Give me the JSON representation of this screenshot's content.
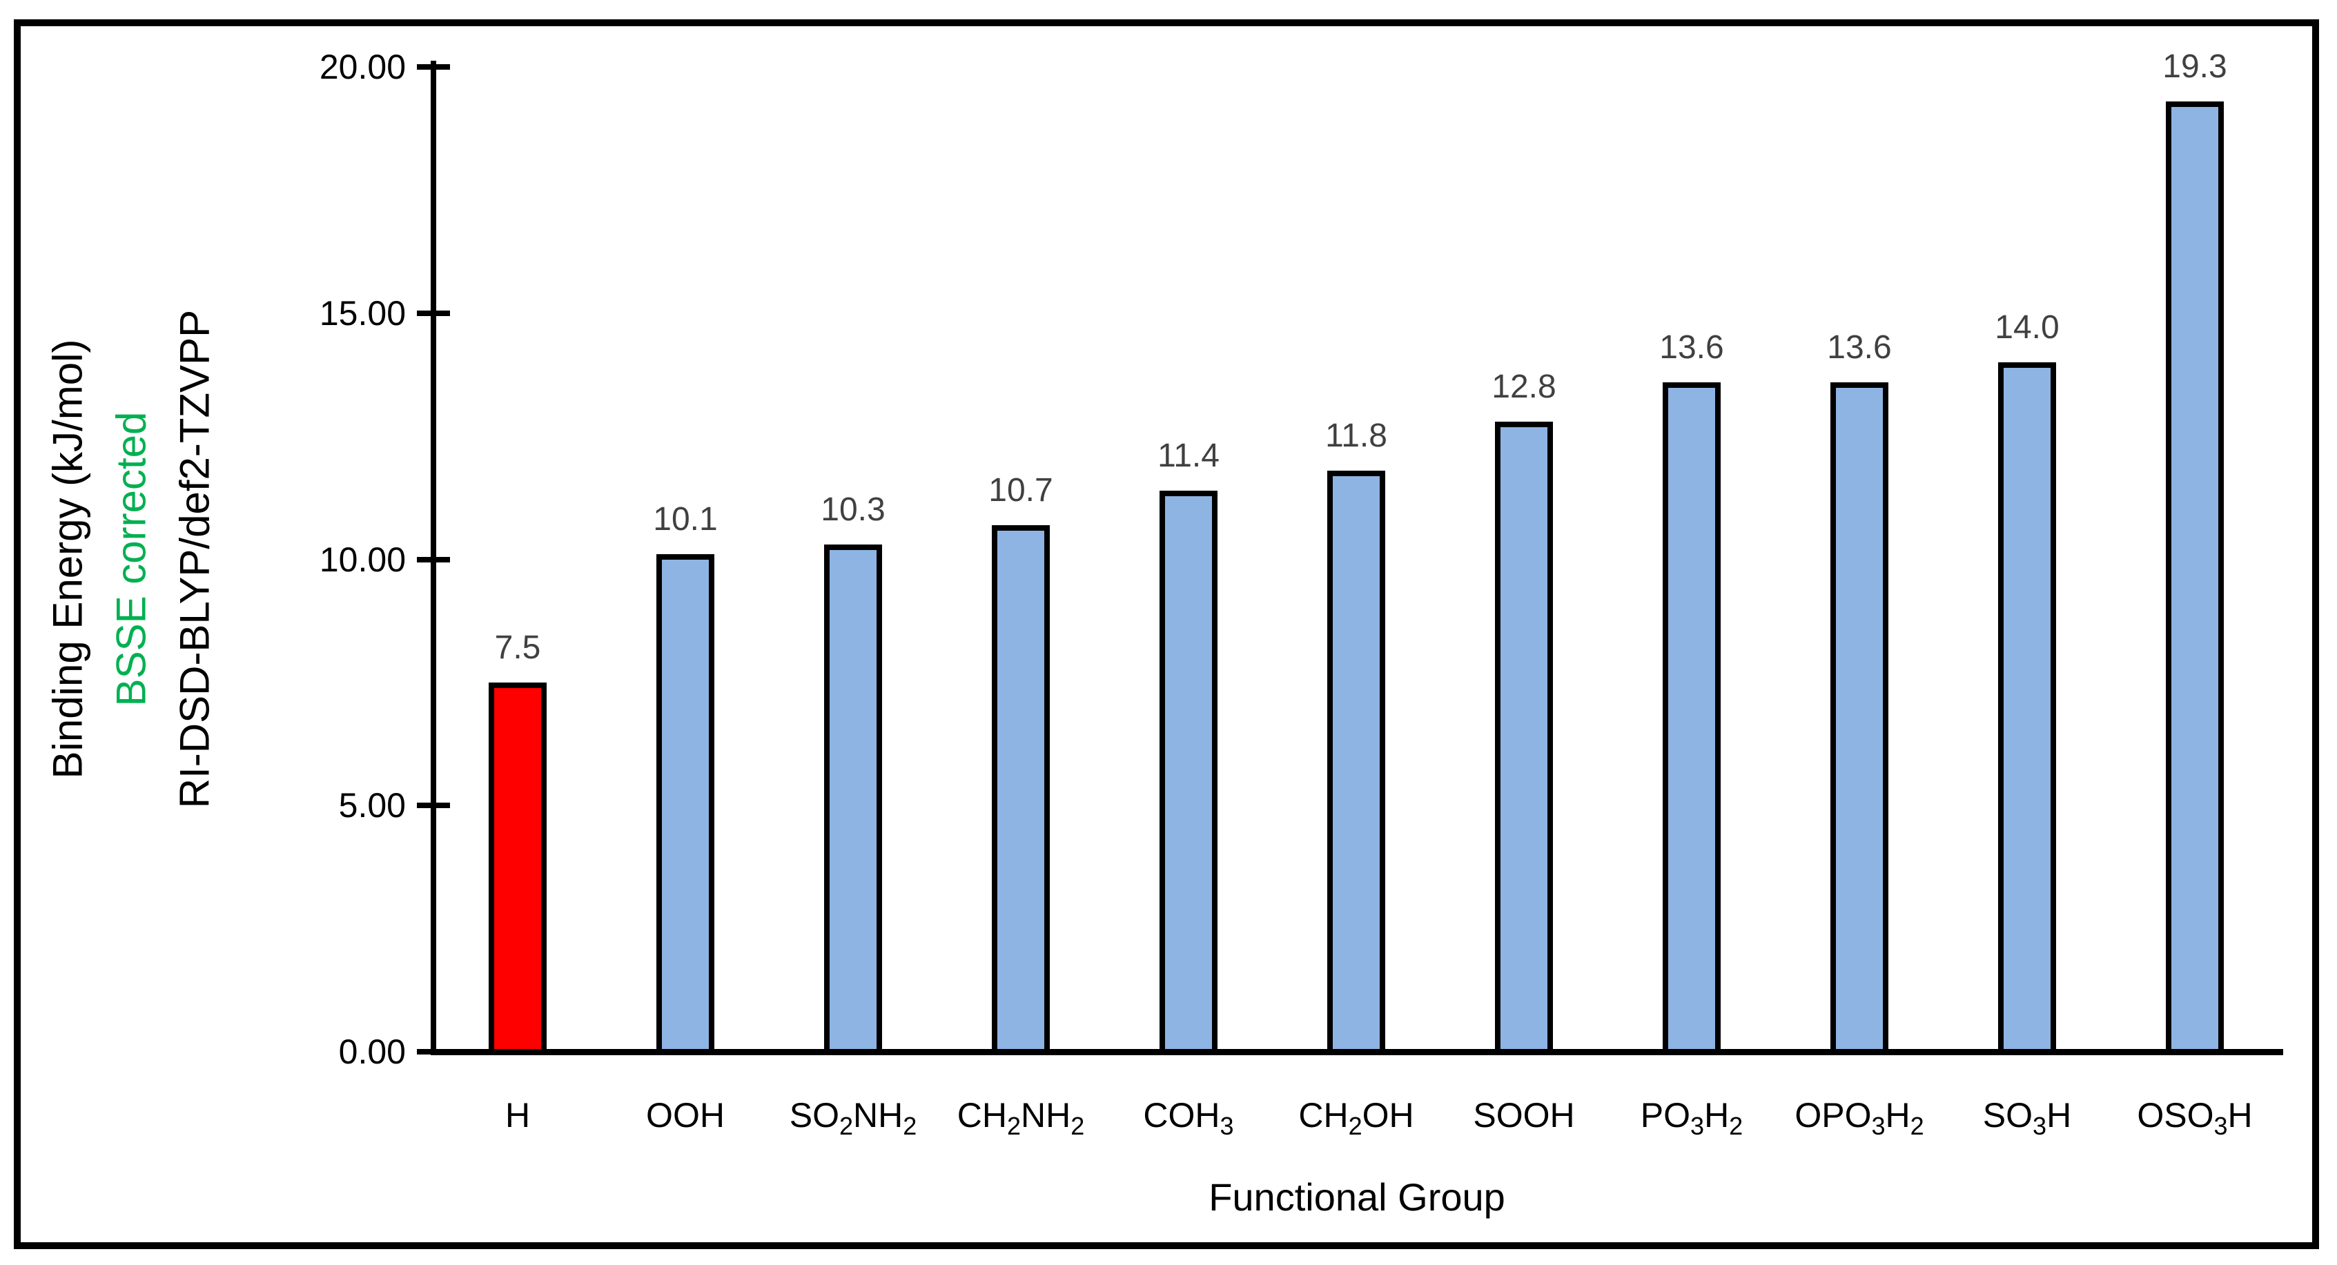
{
  "chart_data": {
    "type": "bar",
    "title": "",
    "categories": [
      "H",
      "OOH",
      "SO_2NH_2",
      "CH_2NH_2",
      "COH_3",
      "CH_2OH",
      "SOOH",
      "PO_3H_2",
      "OPO_3H_2",
      "SO_3H",
      "OSO_3H"
    ],
    "values": [
      7.5,
      10.1,
      10.3,
      10.7,
      11.4,
      11.8,
      12.8,
      13.6,
      13.6,
      14.0,
      19.3
    ],
    "data_labels": [
      "7.5",
      "10.1",
      "10.3",
      "10.7",
      "11.4",
      "11.8",
      "12.8",
      "13.6",
      "13.6",
      "14.0",
      "19.3"
    ],
    "bar_colors": [
      "#FF0000",
      "#8EB4E3",
      "#8EB4E3",
      "#8EB4E3",
      "#8EB4E3",
      "#8EB4E3",
      "#8EB4E3",
      "#8EB4E3",
      "#8EB4E3",
      "#8EB4E3",
      "#8EB4E3"
    ],
    "xlabel": "Functional Group",
    "ylabel_lines": [
      {
        "text": "Binding Energy (kJ/mol)",
        "color": "#000000"
      },
      {
        "text": "BSSE corrected",
        "color": "#00B050"
      },
      {
        "text": "RI-DSD-BLYP/def2-TZVPP",
        "color": "#000000"
      }
    ],
    "yticks": [
      "0.00",
      "5.00",
      "10.00",
      "15.00",
      "20.00"
    ],
    "ylim": [
      0,
      20
    ],
    "ytick_step": 5,
    "grid": false,
    "legend": "none"
  },
  "colors": {
    "background": "#FFFFFF",
    "frame_border": "#000000",
    "axis": "#000000",
    "bar_fill_default": "#8EB4E3",
    "bar_fill_highlight": "#FF0000",
    "bar_border": "#000000",
    "data_label": "#404040",
    "ylabel_accent": "#00B050"
  }
}
